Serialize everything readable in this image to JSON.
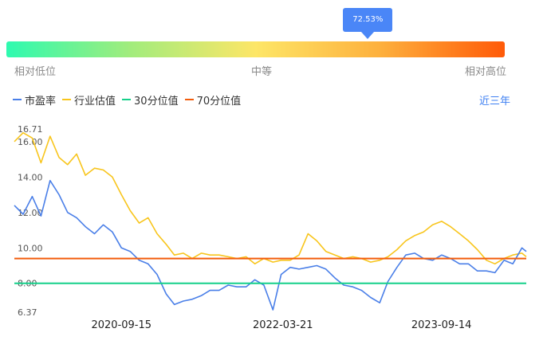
{
  "gauge": {
    "percentile": 0.7253,
    "tooltip": "72.53%",
    "labels": [
      "相对低位",
      "中等",
      "相对高位"
    ],
    "gradient": [
      "#2efab0",
      "#a2ec7c",
      "#fde667",
      "#fdb03d",
      "#ff5a08"
    ]
  },
  "legend": [
    {
      "label": "市盈率",
      "color": "#4a7fe8"
    },
    {
      "label": "行业估值",
      "color": "#f8c51c"
    },
    {
      "label": "30分位值",
      "color": "#16d08a"
    },
    {
      "label": "70分位值",
      "color": "#f25c0c"
    }
  ],
  "range_label": "近三年",
  "chart_data": {
    "type": "line",
    "ylim": [
      6.37,
      16.71
    ],
    "ytick_labels": [
      "16.71",
      "16.00",
      "14.00",
      "12.00",
      "10.00",
      "8.00",
      "6.37"
    ],
    "yticks": [
      16.71,
      16.0,
      14.0,
      12.0,
      10.0,
      8.0,
      6.37
    ],
    "x_range": [
      "2019-09-15",
      "2024-06-30"
    ],
    "xtick_labels": [
      "2020-09-15",
      "2022-03-21",
      "2023-09-14"
    ],
    "xticks": [
      "2020-09-15",
      "2022-03-21",
      "2023-09-14"
    ],
    "thresholds": [
      {
        "name": "30分位值",
        "value": 8.0,
        "color": "#16d08a"
      },
      {
        "name": "70分位值",
        "value": 9.4,
        "color": "#f25c0c"
      }
    ],
    "series": [
      {
        "name": "市盈率",
        "color": "#4a7fe8",
        "x": [
          "2019-09-15",
          "2019-10-15",
          "2019-11-15",
          "2019-12-15",
          "2020-01-15",
          "2020-02-15",
          "2020-03-15",
          "2020-04-15",
          "2020-05-15",
          "2020-06-15",
          "2020-07-15",
          "2020-08-15",
          "2020-09-15",
          "2020-10-15",
          "2020-11-15",
          "2020-12-15",
          "2021-01-15",
          "2021-02-15",
          "2021-03-15",
          "2021-04-15",
          "2021-05-15",
          "2021-06-15",
          "2021-07-15",
          "2021-08-15",
          "2021-09-15",
          "2021-10-15",
          "2021-11-15",
          "2021-12-15",
          "2022-01-15",
          "2022-02-15",
          "2022-03-15",
          "2022-04-15",
          "2022-05-15",
          "2022-06-15",
          "2022-07-15",
          "2022-08-15",
          "2022-09-15",
          "2022-10-15",
          "2022-11-15",
          "2022-12-15",
          "2023-01-15",
          "2023-02-15",
          "2023-03-15",
          "2023-04-15",
          "2023-05-15",
          "2023-06-15",
          "2023-07-15",
          "2023-08-15",
          "2023-09-15",
          "2023-10-15",
          "2023-11-15",
          "2023-12-15",
          "2024-01-15",
          "2024-02-15",
          "2024-03-15",
          "2024-04-15",
          "2024-05-15",
          "2024-06-15",
          "2024-06-30"
        ],
        "values": [
          12.4,
          11.9,
          12.9,
          11.8,
          13.8,
          13.0,
          12.0,
          11.7,
          11.2,
          10.8,
          11.3,
          10.9,
          10.0,
          9.8,
          9.3,
          9.1,
          8.5,
          7.4,
          6.8,
          7.0,
          7.1,
          7.3,
          7.6,
          7.6,
          7.9,
          7.8,
          7.8,
          8.2,
          7.9,
          6.5,
          8.5,
          8.9,
          8.8,
          8.9,
          9.0,
          8.8,
          8.3,
          7.9,
          7.8,
          7.6,
          7.2,
          6.9,
          8.1,
          8.9,
          9.6,
          9.7,
          9.4,
          9.3,
          9.6,
          9.4,
          9.1,
          9.1,
          8.7,
          8.7,
          8.6,
          9.3,
          9.1,
          10.0,
          9.8
        ]
      },
      {
        "name": "行业估值",
        "color": "#f8c51c",
        "x": [
          "2019-09-15",
          "2019-10-15",
          "2019-11-15",
          "2019-12-15",
          "2020-01-15",
          "2020-02-15",
          "2020-03-15",
          "2020-04-15",
          "2020-05-15",
          "2020-06-15",
          "2020-07-15",
          "2020-08-15",
          "2020-09-15",
          "2020-10-15",
          "2020-11-15",
          "2020-12-15",
          "2021-01-15",
          "2021-02-15",
          "2021-03-15",
          "2021-04-15",
          "2021-05-15",
          "2021-06-15",
          "2021-07-15",
          "2021-08-15",
          "2021-09-15",
          "2021-10-15",
          "2021-11-15",
          "2021-12-15",
          "2022-01-15",
          "2022-02-15",
          "2022-03-15",
          "2022-04-15",
          "2022-05-15",
          "2022-06-15",
          "2022-07-15",
          "2022-08-15",
          "2022-09-15",
          "2022-10-15",
          "2022-11-15",
          "2022-12-15",
          "2023-01-15",
          "2023-02-15",
          "2023-03-15",
          "2023-04-15",
          "2023-05-15",
          "2023-06-15",
          "2023-07-15",
          "2023-08-15",
          "2023-09-15",
          "2023-10-15",
          "2023-11-15",
          "2023-12-15",
          "2024-01-15",
          "2024-02-15",
          "2024-03-15",
          "2024-04-15",
          "2024-05-15",
          "2024-06-15",
          "2024-06-30"
        ],
        "values": [
          16.0,
          16.5,
          16.2,
          14.8,
          16.3,
          15.1,
          14.7,
          15.3,
          14.1,
          14.5,
          14.4,
          14.0,
          13.0,
          12.1,
          11.4,
          11.7,
          10.8,
          10.2,
          9.6,
          9.7,
          9.4,
          9.7,
          9.6,
          9.6,
          9.5,
          9.4,
          9.5,
          9.1,
          9.4,
          9.2,
          9.3,
          9.3,
          9.6,
          10.8,
          10.4,
          9.8,
          9.6,
          9.4,
          9.5,
          9.4,
          9.2,
          9.3,
          9.5,
          9.9,
          10.4,
          10.7,
          10.9,
          11.3,
          11.5,
          11.2,
          10.8,
          10.4,
          9.9,
          9.3,
          9.1,
          9.4,
          9.6,
          9.7,
          9.5
        ]
      }
    ]
  }
}
